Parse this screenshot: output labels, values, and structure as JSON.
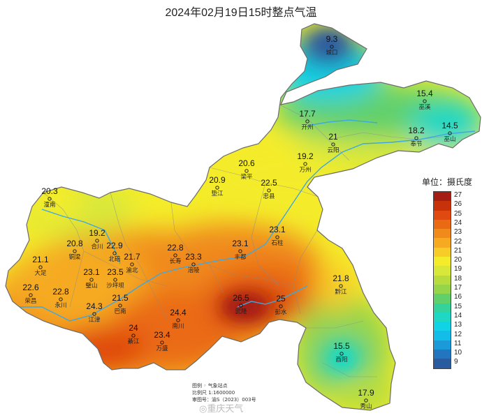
{
  "title": "2024年02月19日15时整点气温",
  "legend": {
    "title": "单位：摄氏度",
    "levels": [
      {
        "v": "27",
        "c": "#a51e14"
      },
      {
        "v": "26",
        "c": "#c8320a"
      },
      {
        "v": "25",
        "c": "#e04a10"
      },
      {
        "v": "24",
        "c": "#ea6a14"
      },
      {
        "v": "23",
        "c": "#f08a1a"
      },
      {
        "v": "22",
        "c": "#f5aa22"
      },
      {
        "v": "21",
        "c": "#f8cc26"
      },
      {
        "v": "20",
        "c": "#f4ec2a"
      },
      {
        "v": "19",
        "c": "#d8e83a"
      },
      {
        "v": "18",
        "c": "#b8dc3e"
      },
      {
        "v": "17",
        "c": "#96d44a"
      },
      {
        "v": "16",
        "c": "#62d06a"
      },
      {
        "v": "15",
        "c": "#34d39c"
      },
      {
        "v": "14",
        "c": "#1ed8c4"
      },
      {
        "v": "13",
        "c": "#10d4e6"
      },
      {
        "v": "12",
        "c": "#12bee8"
      },
      {
        "v": "11",
        "c": "#1a9ad8"
      },
      {
        "v": "10",
        "c": "#2276c0"
      },
      {
        "v": "9",
        "c": "#2a5aa0"
      }
    ]
  },
  "info": {
    "line1": "图例  ◦  气象站点",
    "line2": "比例尺  1:1600000",
    "line3": "审图号：渝S（2023）003号"
  },
  "watermark": "◎重庆天气",
  "stations": [
    {
      "name": "城口",
      "temp": "9.3"
    },
    {
      "name": "巫溪",
      "temp": "15.4"
    },
    {
      "name": "巫山",
      "temp": "14.5"
    },
    {
      "name": "奉节",
      "temp": "18.2"
    },
    {
      "name": "开州",
      "temp": "17.7"
    },
    {
      "name": "云阳",
      "temp": "21"
    },
    {
      "name": "万州",
      "temp": "19.2"
    },
    {
      "name": "梁平",
      "temp": "20.6"
    },
    {
      "name": "垫江",
      "temp": "20.9"
    },
    {
      "name": "忠县",
      "temp": "22.5"
    },
    {
      "name": "潼南",
      "temp": "20.3"
    },
    {
      "name": "合川",
      "temp": "19.2"
    },
    {
      "name": "铜梁",
      "temp": "20.8"
    },
    {
      "name": "北碚",
      "temp": "22.9"
    },
    {
      "name": "渝北",
      "temp": "21.7"
    },
    {
      "name": "长寿",
      "temp": "22.8"
    },
    {
      "name": "石柱",
      "temp": "23.1"
    },
    {
      "name": "丰都",
      "temp": "23.1"
    },
    {
      "name": "涪陵",
      "temp": "23.3"
    },
    {
      "name": "大足",
      "temp": "21.1"
    },
    {
      "name": "璧山",
      "temp": "23.1"
    },
    {
      "name": "沙坪坝",
      "temp": "23.5"
    },
    {
      "name": "荣昌",
      "temp": "22.6"
    },
    {
      "name": "永川",
      "temp": "22.8"
    },
    {
      "name": "巴南",
      "temp": "21.5"
    },
    {
      "name": "江津",
      "temp": "24.3"
    },
    {
      "name": "南川",
      "temp": "24.4"
    },
    {
      "name": "武隆",
      "temp": "26.5"
    },
    {
      "name": "彭水",
      "temp": "25"
    },
    {
      "name": "黔江",
      "temp": "21.8"
    },
    {
      "name": "綦江",
      "temp": "24"
    },
    {
      "name": "万盛",
      "temp": "23.4"
    },
    {
      "name": "酉阳",
      "temp": "15.5"
    },
    {
      "name": "秀山",
      "temp": "17.9"
    }
  ]
}
